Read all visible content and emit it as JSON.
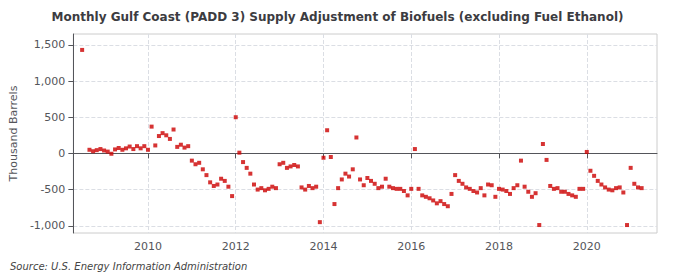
{
  "chart_data": {
    "type": "scatter",
    "title": "Monthly Gulf Coast (PADD 3) Supply Adjustment of Biofuels (excluding Fuel Ethanol)",
    "ylabel": "Thousand Barrels",
    "annotations": [
      "Source: U.S. Energy Information Administration"
    ],
    "color": "#cc0000",
    "marker": "square",
    "grid": true,
    "xlim": [
      2008.3,
      2021.6
    ],
    "xticks": [
      2010,
      2012,
      2014,
      2016,
      2018,
      2020
    ],
    "ylim": [
      -1100,
      1650
    ],
    "yticks": [
      {
        "value": -1000,
        "label": "-1,000"
      },
      -500,
      0,
      500,
      {
        "value": 1000,
        "label": "1,000"
      },
      {
        "value": 1500,
        "label": "1,500"
      }
    ],
    "x": [
      2008.5,
      2008.667,
      2008.75,
      2008.833,
      2008.917,
      2009.0,
      2009.083,
      2009.167,
      2009.25,
      2009.333,
      2009.417,
      2009.5,
      2009.583,
      2009.667,
      2009.75,
      2009.833,
      2009.917,
      2010.0,
      2010.083,
      2010.167,
      2010.25,
      2010.333,
      2010.417,
      2010.5,
      2010.583,
      2010.667,
      2010.75,
      2010.833,
      2010.917,
      2011.0,
      2011.083,
      2011.167,
      2011.25,
      2011.333,
      2011.417,
      2011.5,
      2011.583,
      2011.667,
      2011.75,
      2011.833,
      2011.917,
      2012.0,
      2012.083,
      2012.167,
      2012.25,
      2012.333,
      2012.417,
      2012.5,
      2012.583,
      2012.667,
      2012.75,
      2012.833,
      2012.917,
      2013.0,
      2013.083,
      2013.167,
      2013.25,
      2013.333,
      2013.417,
      2013.5,
      2013.583,
      2013.667,
      2013.75,
      2013.833,
      2013.917,
      2014.0,
      2014.083,
      2014.167,
      2014.25,
      2014.333,
      2014.417,
      2014.5,
      2014.583,
      2014.667,
      2014.75,
      2014.833,
      2014.917,
      2015.0,
      2015.083,
      2015.167,
      2015.25,
      2015.333,
      2015.417,
      2015.5,
      2015.583,
      2015.667,
      2015.75,
      2015.833,
      2015.917,
      2016.0,
      2016.083,
      2016.167,
      2016.25,
      2016.333,
      2016.417,
      2016.5,
      2016.583,
      2016.667,
      2016.75,
      2016.833,
      2016.917,
      2017.0,
      2017.083,
      2017.167,
      2017.25,
      2017.333,
      2017.417,
      2017.5,
      2017.583,
      2017.667,
      2017.75,
      2017.833,
      2017.917,
      2018.0,
      2018.083,
      2018.167,
      2018.25,
      2018.333,
      2018.417,
      2018.5,
      2018.583,
      2018.667,
      2018.75,
      2018.833,
      2018.917,
      2019.0,
      2019.083,
      2019.167,
      2019.25,
      2019.333,
      2019.417,
      2019.5,
      2019.583,
      2019.667,
      2019.75,
      2019.833,
      2019.917,
      2020.0,
      2020.083,
      2020.167,
      2020.25,
      2020.333,
      2020.417,
      2020.5,
      2020.583,
      2020.667,
      2020.75,
      2020.833,
      2020.917,
      2021.0,
      2021.083,
      2021.167,
      2021.25
    ],
    "values": [
      1430,
      50,
      30,
      45,
      60,
      40,
      25,
      -5,
      55,
      75,
      50,
      70,
      95,
      60,
      100,
      70,
      100,
      50,
      370,
      110,
      240,
      280,
      250,
      200,
      330,
      90,
      120,
      80,
      100,
      -100,
      -150,
      -130,
      -220,
      -300,
      -400,
      -450,
      -430,
      -350,
      -380,
      -460,
      -590,
      500,
      10,
      -120,
      -200,
      -280,
      -430,
      -500,
      -480,
      -510,
      -490,
      -460,
      -480,
      -150,
      -130,
      -200,
      -180,
      -160,
      -180,
      -470,
      -500,
      -450,
      -480,
      -460,
      -950,
      -60,
      320,
      -50,
      -700,
      -480,
      -360,
      -280,
      -320,
      -220,
      220,
      -360,
      -440,
      -340,
      -380,
      -420,
      -480,
      -460,
      -350,
      -460,
      -480,
      -490,
      -490,
      -520,
      -580,
      -490,
      60,
      -490,
      -580,
      -600,
      -620,
      -650,
      -690,
      -660,
      -700,
      -730,
      -560,
      -300,
      -380,
      -420,
      -470,
      -490,
      -520,
      -540,
      -480,
      -580,
      -430,
      -440,
      -600,
      -490,
      -500,
      -520,
      -560,
      -480,
      -440,
      -100,
      -460,
      -530,
      -600,
      -550,
      -990,
      130,
      -90,
      -450,
      -490,
      -480,
      -530,
      -530,
      -560,
      -580,
      -600,
      -490,
      -490,
      20,
      -240,
      -310,
      -380,
      -430,
      -470,
      -500,
      -510,
      -480,
      -470,
      -540,
      -990,
      -200,
      -420,
      -470,
      -480
    ]
  }
}
